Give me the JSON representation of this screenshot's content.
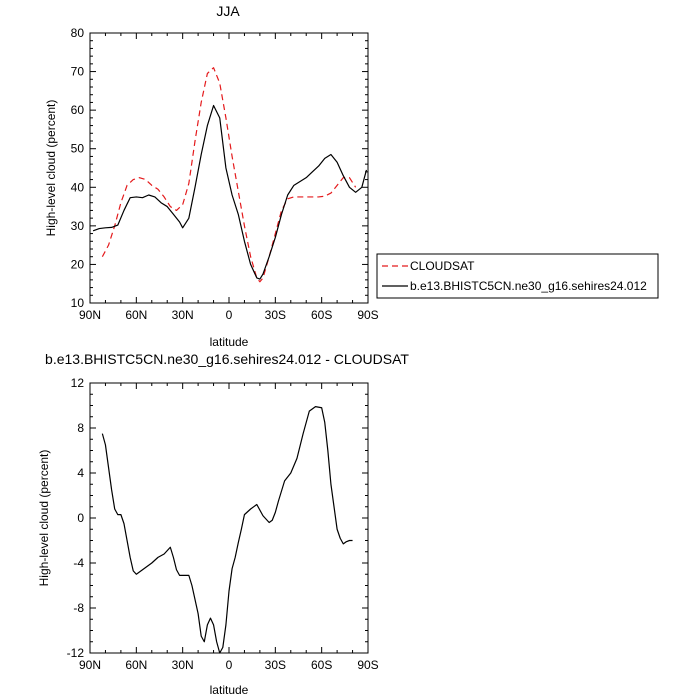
{
  "chart_data": [
    {
      "type": "line",
      "title": "JJA",
      "xlabel": "latitude",
      "ylabel": "High-level cloud (percent)",
      "xlim": [
        90,
        -90
      ],
      "ylim": [
        10,
        80
      ],
      "x_ticks": [
        90,
        60,
        30,
        0,
        -30,
        -60,
        -90
      ],
      "x_tick_labels": [
        "90N",
        "60N",
        "30N",
        "0",
        "30S",
        "60S",
        "90S"
      ],
      "y_ticks": [
        10,
        20,
        30,
        40,
        50,
        60,
        70,
        80
      ],
      "y_tick_labels": [
        "10",
        "20",
        "30",
        "40",
        "50",
        "60",
        "70",
        "80"
      ],
      "legend_position": "right, outside plot",
      "series": [
        {
          "name": "CLOUDSAT",
          "color": "#e41a1c",
          "dash": true,
          "x": [
            82,
            78,
            74,
            70,
            66,
            62,
            58,
            54,
            50,
            46,
            42,
            38,
            34,
            30,
            26,
            22,
            18,
            14,
            10,
            6,
            2,
            -2,
            -6,
            -10,
            -14,
            -18,
            -20,
            -22,
            -26,
            -30,
            -34,
            -38,
            -42,
            -46,
            -50,
            -54,
            -58,
            -62,
            -66,
            -70,
            -74,
            -78,
            -82
          ],
          "values": [
            22,
            25,
            30,
            36,
            40.5,
            42,
            42.5,
            42,
            40.5,
            39.5,
            37.5,
            35,
            34,
            35.5,
            41,
            52,
            62,
            69.5,
            71,
            67,
            58,
            48,
            39,
            30,
            22,
            16.5,
            15.5,
            16.5,
            22,
            28,
            34,
            37,
            37.5,
            37.5,
            37.5,
            37.5,
            37.5,
            37.7,
            38.5,
            40.5,
            42.5,
            42.5,
            40
          ]
        },
        {
          "name": "b.e13.BHISTC5CN.ne30_g16.sehires24.012",
          "color": "#000000",
          "dash": false,
          "x": [
            88,
            84,
            80,
            76,
            72,
            68,
            64,
            60,
            56,
            52,
            48,
            44,
            40,
            36,
            32,
            30,
            26,
            22,
            18,
            14,
            10,
            6,
            2,
            -2,
            -6,
            -10,
            -14,
            -18,
            -20,
            -22,
            -26,
            -30,
            -34,
            -38,
            -42,
            -46,
            -50,
            -54,
            -58,
            -62,
            -66,
            -70,
            -74,
            -78,
            -82,
            -86,
            -89
          ],
          "values": [
            28.7,
            29.3,
            29.5,
            29.6,
            30.2,
            34,
            37.3,
            37.5,
            37.3,
            38,
            37.5,
            36,
            35,
            33,
            31,
            29.5,
            32,
            40,
            48.5,
            56,
            61.2,
            58,
            45,
            38,
            33,
            26,
            20,
            16.5,
            16.2,
            17.5,
            22,
            27,
            33,
            38,
            40.5,
            41.5,
            42.5,
            44,
            45.5,
            47.5,
            48.5,
            46.5,
            43,
            40,
            38.7,
            40,
            44.5
          ]
        }
      ]
    },
    {
      "type": "line",
      "title": "b.e13.BHISTC5CN.ne30_g16.sehires24.012 - CLOUDSAT",
      "xlabel": "latitude",
      "ylabel": "High-level cloud (percent)",
      "xlim": [
        90,
        -90
      ],
      "ylim": [
        -12,
        12
      ],
      "x_ticks": [
        90,
        60,
        30,
        0,
        -30,
        -60,
        -90
      ],
      "x_tick_labels": [
        "90N",
        "60N",
        "30N",
        "0",
        "30S",
        "60S",
        "90S"
      ],
      "y_ticks": [
        -12,
        -8,
        -4,
        0,
        4,
        8,
        12
      ],
      "y_tick_labels": [
        "-12",
        "-8",
        "-4",
        "0",
        "4",
        "8",
        "12"
      ],
      "series": [
        {
          "color": "#000000",
          "dash": false,
          "x": [
            82,
            80,
            78,
            76,
            74,
            72,
            70,
            68,
            66,
            64,
            62,
            60,
            58,
            54,
            50,
            46,
            42,
            38,
            36,
            34,
            32,
            30,
            26,
            24,
            20,
            18,
            16,
            14,
            12,
            10,
            8,
            6,
            4,
            2,
            0,
            -2,
            -4,
            -6,
            -8,
            -10,
            -14,
            -18,
            -22,
            -26,
            -28,
            -30,
            -32,
            -36,
            -40,
            -44,
            -48,
            -52,
            -56,
            -60,
            -62,
            -64,
            -66,
            -68,
            -70,
            -72,
            -74,
            -76,
            -78,
            -80
          ],
          "values": [
            7.5,
            6.5,
            4.5,
            2.5,
            0.8,
            0.3,
            0.3,
            -0.5,
            -2,
            -3.5,
            -4.7,
            -5,
            -4.8,
            -4.4,
            -4,
            -3.5,
            -3.2,
            -2.6,
            -3.5,
            -4.6,
            -5.1,
            -5.1,
            -5.1,
            -6,
            -8.5,
            -10.5,
            -11,
            -9.5,
            -8.9,
            -9.5,
            -11,
            -12,
            -11.5,
            -9.5,
            -6.5,
            -4.5,
            -3.5,
            -2.2,
            -1,
            0.3,
            0.8,
            1.2,
            0.2,
            -0.4,
            -0.2,
            0.5,
            1.5,
            3.3,
            4,
            5.3,
            7.5,
            9.5,
            9.9,
            9.8,
            8.5,
            6,
            3,
            1,
            -1,
            -1.8,
            -2.3,
            -2.1,
            -2,
            -2
          ]
        }
      ]
    }
  ]
}
